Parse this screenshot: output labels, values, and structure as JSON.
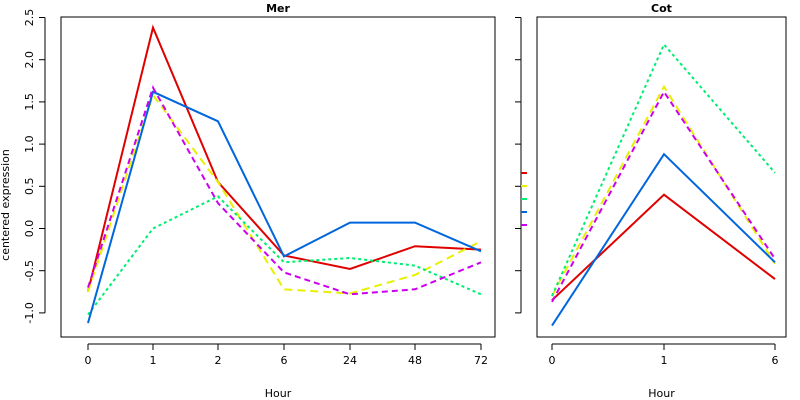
{
  "ylabel": "centered expression",
  "chart_data": [
    {
      "type": "line",
      "title": "Mer",
      "xlabel": "Hour",
      "ylabel": "centered expression",
      "categories": [
        "0",
        "1",
        "2",
        "6",
        "24",
        "48",
        "72"
      ],
      "yticks": [
        "-1.0",
        "-0.5",
        "0.0",
        "0.5",
        "1.0",
        "1.5",
        "2.0",
        "2.5"
      ],
      "ylim": [
        -1.3,
        2.5
      ],
      "series": [
        {
          "color": "#e00000",
          "dash": "solid",
          "values": [
            -0.75,
            2.38,
            0.55,
            -0.32,
            -0.48,
            -0.21,
            -0.25
          ]
        },
        {
          "color": "#e8f000",
          "dash": "long-dash",
          "values": [
            -0.75,
            1.58,
            0.55,
            -0.72,
            -0.77,
            -0.55,
            -0.15
          ]
        },
        {
          "color": "#00ee70",
          "dash": "dotted",
          "values": [
            -1.02,
            0.0,
            0.38,
            -0.4,
            -0.35,
            -0.44,
            -0.78
          ]
        },
        {
          "color": "#0066dd",
          "dash": "solid",
          "values": [
            -1.12,
            1.62,
            1.27,
            -0.33,
            0.07,
            0.07,
            -0.27
          ]
        },
        {
          "color": "#cc00ee",
          "dash": "dashed",
          "values": [
            -0.7,
            1.67,
            0.3,
            -0.52,
            -0.78,
            -0.72,
            -0.4
          ]
        }
      ]
    },
    {
      "type": "line",
      "title": "Cot",
      "xlabel": "Hour",
      "categories": [
        "0",
        "1",
        "6"
      ],
      "ylim": [
        -1.3,
        2.5
      ],
      "series": [
        {
          "color": "#e00000",
          "dash": "solid",
          "values": [
            -0.85,
            0.4,
            -0.6
          ]
        },
        {
          "color": "#e8f000",
          "dash": "long-dash",
          "values": [
            -0.8,
            1.68,
            -0.42
          ]
        },
        {
          "color": "#00ee70",
          "dash": "dotted",
          "values": [
            -0.8,
            2.18,
            0.66
          ]
        },
        {
          "color": "#0066dd",
          "dash": "solid",
          "values": [
            -1.15,
            0.88,
            -0.4
          ]
        },
        {
          "color": "#cc00ee",
          "dash": "dashed",
          "values": [
            -0.87,
            1.62,
            -0.36
          ]
        }
      ]
    }
  ]
}
